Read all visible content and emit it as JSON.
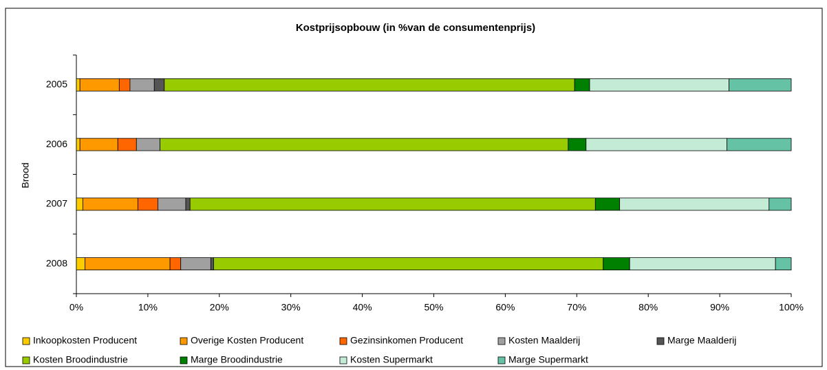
{
  "chart_data": {
    "type": "stacked-bar-horizontal",
    "title": "Kostprijsopbouw (in %van de consumentenprijs)",
    "y_label": "Brood",
    "categories": [
      "2005",
      "2006",
      "2007",
      "2008"
    ],
    "series": [
      {
        "name": "Inkoopkosten Producent",
        "color": "#FFCC00",
        "values": [
          0.5,
          0.5,
          0.9,
          1.2
        ]
      },
      {
        "name": "Overige Kosten Producent",
        "color": "#FF9900",
        "values": [
          5.5,
          5.3,
          7.7,
          11.9
        ]
      },
      {
        "name": "Gezinsinkomen Producent",
        "color": "#FF6600",
        "values": [
          1.5,
          2.6,
          2.8,
          1.5
        ]
      },
      {
        "name": "Kosten Maalderij",
        "color": "#A0A0A0",
        "values": [
          3.4,
          3.3,
          3.9,
          4.2
        ]
      },
      {
        "name": "Marge Maalderij",
        "color": "#555555",
        "values": [
          1.4,
          0,
          0.6,
          0.4
        ]
      },
      {
        "name": "Kosten Broodindustrie",
        "color": "#99CC00",
        "values": [
          57.4,
          57.1,
          56.7,
          54.5
        ]
      },
      {
        "name": "Marge Broodindustrie",
        "color": "#008000",
        "values": [
          2.1,
          2.5,
          3.4,
          3.7
        ]
      },
      {
        "name": "Kosten Supermarkt",
        "color": "#C4EBD6",
        "values": [
          19.5,
          19.7,
          20.9,
          20.4
        ]
      },
      {
        "name": "Marge Supermarkt",
        "color": "#66C2A5",
        "values": [
          8.7,
          9.0,
          3.1,
          2.2
        ]
      }
    ],
    "xlim": [
      0,
      100
    ],
    "xticks": [
      {
        "value": 0,
        "label": "0%"
      },
      {
        "value": 10,
        "label": "10%"
      },
      {
        "value": 20,
        "label": "20%"
      },
      {
        "value": 30,
        "label": "30%"
      },
      {
        "value": 40,
        "label": "40%"
      },
      {
        "value": 50,
        "label": "50%"
      },
      {
        "value": 60,
        "label": "60%"
      },
      {
        "value": 70,
        "label": "70%"
      },
      {
        "value": 80,
        "label": "80%"
      },
      {
        "value": 90,
        "label": "90%"
      },
      {
        "value": 100,
        "label": "100%"
      }
    ],
    "legend": "bottom"
  }
}
